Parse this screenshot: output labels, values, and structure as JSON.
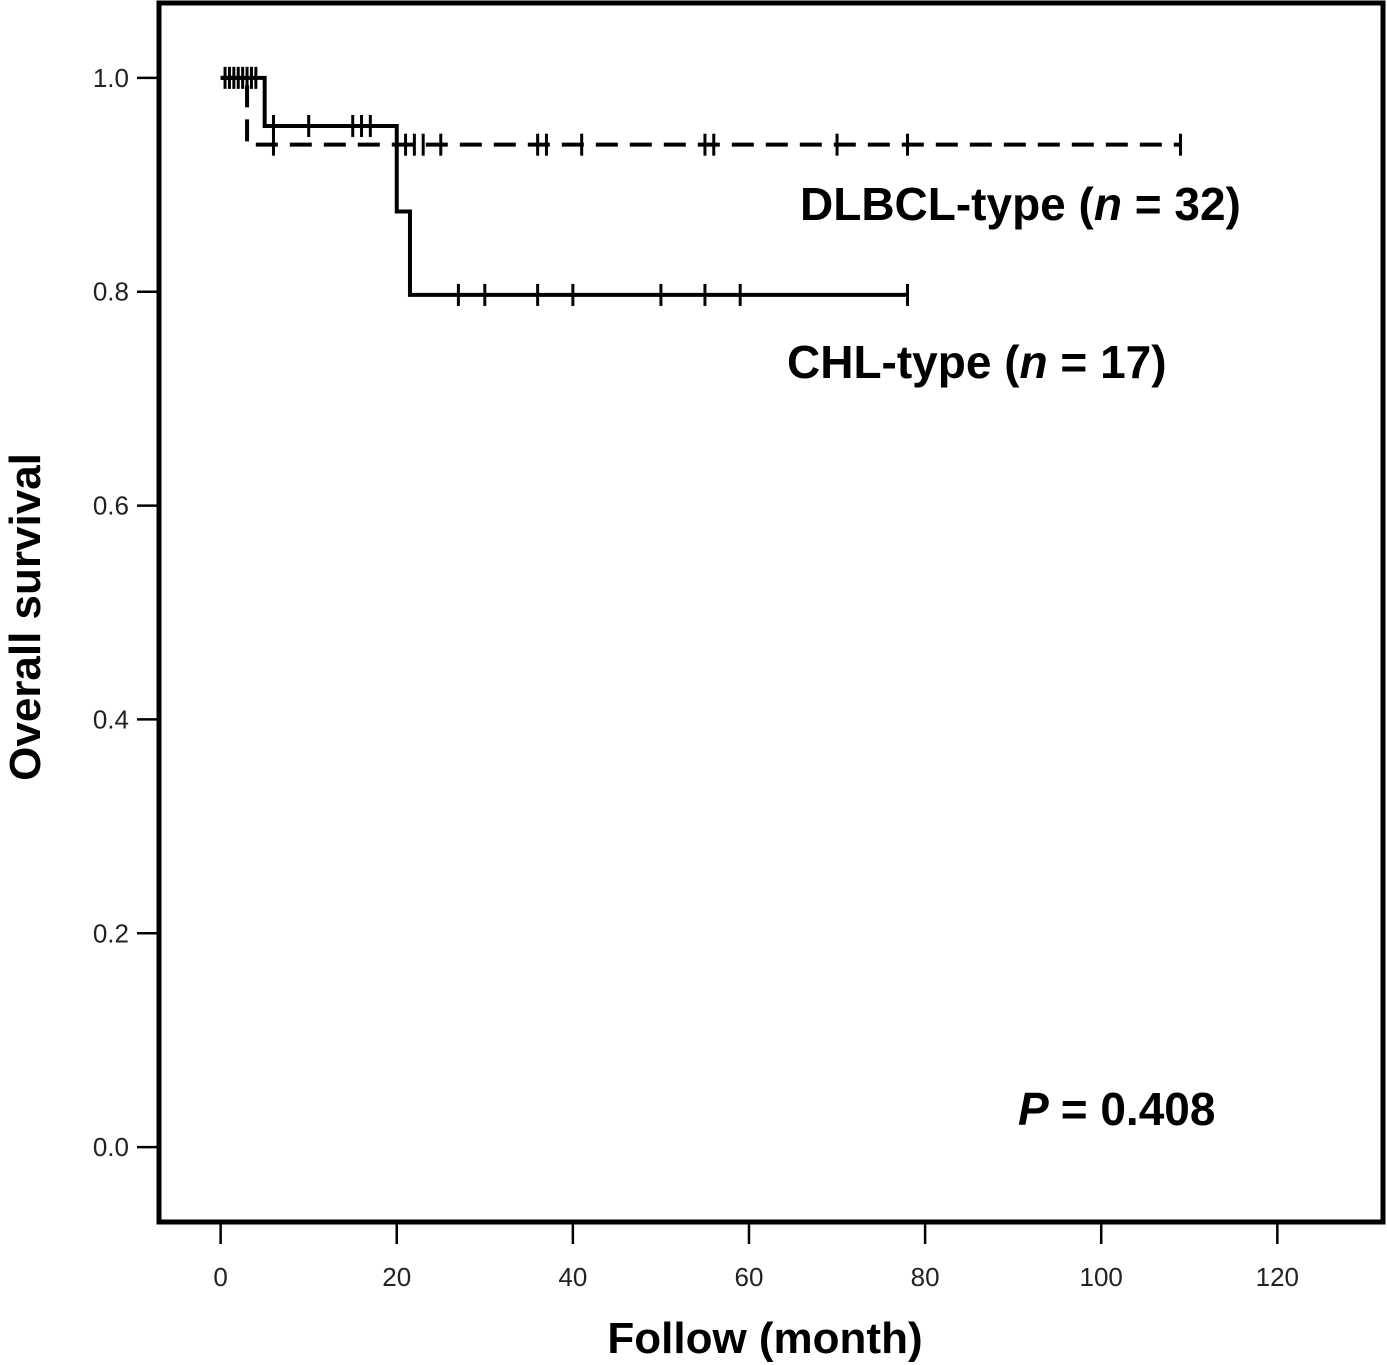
{
  "chart_data": {
    "type": "line",
    "subtype": "kaplan-meier",
    "xlabel": "Follow (month)",
    "ylabel": "Overall survival",
    "xlim": [
      -7,
      132
    ],
    "ylim": [
      -0.07,
      1.07
    ],
    "x_ticks": [
      "0",
      "20",
      "40",
      "60",
      "80",
      "100",
      "120"
    ],
    "y_ticks": [
      "0.0",
      "0.2",
      "0.4",
      "0.6",
      "0.8",
      "1.0"
    ],
    "annotation": {
      "p_prefix": "P",
      "p_value": "= 0.408"
    },
    "series": [
      {
        "label_prefix": "DLBCL-type (",
        "label_n_symbol": "n",
        "label_suffix": " = 32)",
        "line_style": "dashed",
        "color": "#000000",
        "steps": [
          [
            0,
            1.0
          ],
          [
            3,
            0.9375
          ],
          [
            109,
            0.9375
          ]
        ],
        "censored": [
          [
            0.5,
            1.0
          ],
          [
            1,
            1.0
          ],
          [
            1.5,
            1.0
          ],
          [
            2,
            1.0
          ],
          [
            2.5,
            1.0
          ],
          [
            6,
            0.9375
          ],
          [
            21,
            0.9375
          ],
          [
            22,
            0.9375
          ],
          [
            23,
            0.9375
          ],
          [
            25,
            0.9375
          ],
          [
            36,
            0.9375
          ],
          [
            37,
            0.9375
          ],
          [
            41,
            0.9375
          ],
          [
            55,
            0.9375
          ],
          [
            56,
            0.9375
          ],
          [
            70,
            0.9375
          ],
          [
            78,
            0.9375
          ],
          [
            109,
            0.9375
          ]
        ]
      },
      {
        "label_prefix": "CHL-type (",
        "label_n_symbol": "n",
        "label_suffix": " = 17)",
        "line_style": "solid",
        "color": "#000000",
        "steps": [
          [
            0,
            1.0
          ],
          [
            5,
            0.955
          ],
          [
            20,
            0.875
          ],
          [
            21.5,
            0.797
          ],
          [
            78,
            0.797
          ]
        ],
        "censored": [
          [
            3,
            1.0
          ],
          [
            3.5,
            1.0
          ],
          [
            4,
            1.0
          ],
          [
            6,
            0.955
          ],
          [
            10,
            0.955
          ],
          [
            15,
            0.955
          ],
          [
            16,
            0.955
          ],
          [
            17,
            0.955
          ],
          [
            27,
            0.797
          ],
          [
            30,
            0.797
          ],
          [
            36,
            0.797
          ],
          [
            40,
            0.797
          ],
          [
            50,
            0.797
          ],
          [
            55,
            0.797
          ],
          [
            59,
            0.797
          ],
          [
            78,
            0.797
          ]
        ]
      }
    ]
  }
}
